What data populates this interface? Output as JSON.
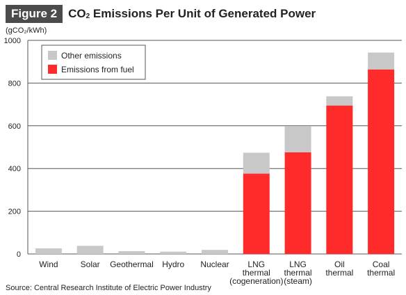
{
  "header": {
    "figure_label": "Figure 2",
    "title_prefix": "CO",
    "title_sub": "2",
    "title_rest": " Emissions Per Unit of Generated Power"
  },
  "source": "Source: Central Research Institute of Electric Power Industry",
  "colors": {
    "fuel": "#ff2a2a",
    "other": "#c8c8c8",
    "grid": "#555555",
    "text": "#222222"
  },
  "chart_data": {
    "type": "bar",
    "stacked": true,
    "ylabel": "(gCO₂/kWh)",
    "ylim": [
      0,
      1000
    ],
    "yticks": [
      0,
      200,
      400,
      600,
      800,
      1000
    ],
    "grid": true,
    "legend_position": "top-left",
    "categories": [
      [
        "Wind"
      ],
      [
        "Solar"
      ],
      [
        "Geothermal"
      ],
      [
        "Hydro"
      ],
      [
        "Nuclear"
      ],
      [
        "LNG",
        "thermal",
        "(cogeneration)"
      ],
      [
        "LNG",
        "thermal",
        "(steam)"
      ],
      [
        "Oil",
        "thermal"
      ],
      [
        "Coal",
        "thermal"
      ]
    ],
    "series": [
      {
        "name": "Emissions from fuel",
        "values": [
          0,
          0,
          0,
          0,
          0,
          376,
          476,
          695,
          864
        ]
      },
      {
        "name": "Other emissions",
        "values": [
          26,
          38,
          13,
          11,
          19,
          98,
          123,
          43,
          79
        ]
      }
    ]
  }
}
